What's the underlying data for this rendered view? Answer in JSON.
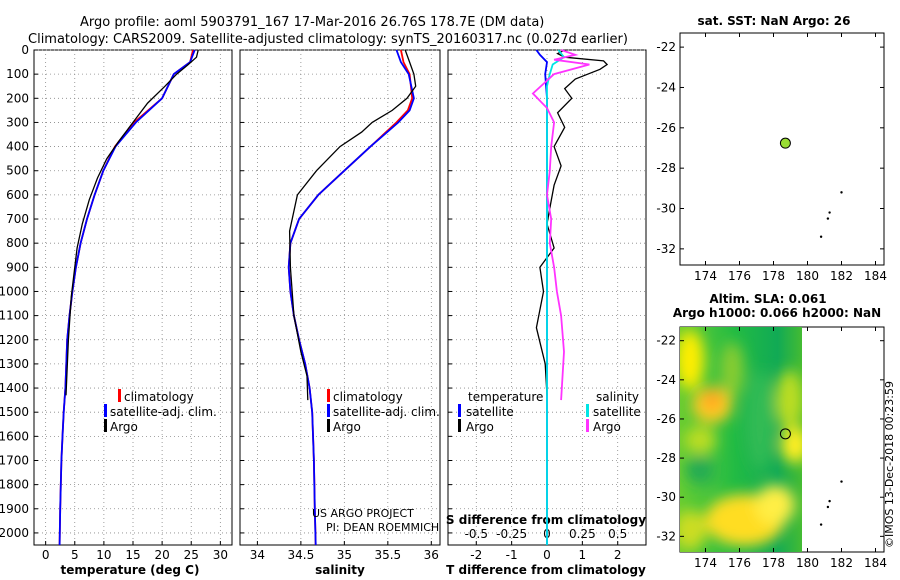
{
  "header": {
    "line1": "Argo profile: aoml 5903791_167 17-Mar-2016 26.76S 178.7E (DM data)",
    "line2": "Climatology: CARS2009. Satellite-adjusted climatology: synTS_20160317.nc (0.027d earlier)"
  },
  "credit": {
    "project": "US ARGO PROJECT",
    "pi": "PI: DEAN ROEMMICH"
  },
  "watermark": "©IMOS 13-Dec-2018 00:23:59",
  "colors": {
    "climatology": "#ff0000",
    "satellite": "#0000ff",
    "argo": "#000000",
    "sat_t_diff": "#0000ff",
    "sat_s_diff": "#00e5e5",
    "argo_s_diff": "#ff33ff",
    "map_dot": "#99dd33"
  },
  "chart_data": [
    {
      "type": "line",
      "name": "temperature",
      "xlabel": "temperature (deg C)",
      "xticks": [
        "0",
        "5",
        "10",
        "15",
        "20",
        "25",
        "30"
      ],
      "xlim": [
        -2,
        32
      ],
      "ylim": [
        2050,
        0
      ],
      "yticks": [
        "0",
        "100",
        "200",
        "300",
        "400",
        "500",
        "600",
        "700",
        "800",
        "900",
        "1000",
        "1100",
        "1200",
        "1300",
        "1400",
        "1500",
        "1600",
        "1700",
        "1800",
        "1900",
        "2000"
      ],
      "legend": [
        "climatology",
        "satellite-adj. clim.",
        "Argo"
      ],
      "series": [
        {
          "name": "climatology",
          "color": "#ff0000",
          "x": [
            25.3,
            24.8,
            22.0,
            20.0,
            15.2,
            11.9,
            9.9,
            8.4,
            7.1,
            6.0,
            5.2,
            4.6,
            4.1,
            3.7,
            3.4,
            3.1,
            2.9,
            2.7,
            2.6,
            2.5,
            2.4
          ],
          "y": [
            0,
            50,
            100,
            200,
            300,
            400,
            500,
            600,
            700,
            800,
            900,
            1000,
            1100,
            1200,
            1400,
            1500,
            1600,
            1700,
            1800,
            1900,
            2050
          ]
        },
        {
          "name": "satellite-adj. clim.",
          "color": "#0000ff",
          "x": [
            25.6,
            24.8,
            22.0,
            20.0,
            15.5,
            12.0,
            9.9,
            8.4,
            7.1,
            6.0,
            5.2,
            4.6,
            4.1,
            3.7,
            3.4,
            3.1,
            2.9,
            2.7,
            2.6,
            2.5,
            2.4
          ],
          "y": [
            0,
            50,
            100,
            200,
            300,
            400,
            500,
            600,
            700,
            800,
            900,
            1000,
            1100,
            1200,
            1400,
            1500,
            1600,
            1700,
            1800,
            1900,
            2050
          ]
        },
        {
          "name": "Argo",
          "color": "#000000",
          "x": [
            26.2,
            25.9,
            24.5,
            22.5,
            20.5,
            17.5,
            15.0,
            12.5,
            10.5,
            8.9,
            7.5,
            6.3,
            5.4,
            4.9,
            4.4,
            3.9,
            3.5
          ],
          "y": [
            0,
            30,
            60,
            100,
            150,
            220,
            300,
            380,
            450,
            530,
            620,
            720,
            820,
            920,
            1020,
            1200,
            1430
          ]
        }
      ]
    },
    {
      "type": "line",
      "name": "salinity",
      "xlabel": "salinity",
      "xticks": [
        "34",
        "34.5",
        "35",
        "35.5",
        "36"
      ],
      "xlim": [
        33.8,
        36.1
      ],
      "ylim": [
        2050,
        0
      ],
      "legend": [
        "climatology",
        "satellite-adj. clim.",
        "Argo"
      ],
      "series": [
        {
          "name": "climatology",
          "color": "#ff0000",
          "x": [
            35.65,
            35.68,
            35.75,
            35.78,
            35.73,
            35.6,
            35.3,
            35.0,
            34.7,
            34.48,
            34.38,
            34.36,
            34.38,
            34.42,
            34.48,
            34.55,
            34.6,
            34.63,
            34.65,
            34.66,
            34.67
          ],
          "y": [
            0,
            50,
            100,
            200,
            250,
            300,
            400,
            500,
            600,
            700,
            800,
            900,
            1000,
            1100,
            1200,
            1300,
            1400,
            1500,
            1700,
            1900,
            2050
          ]
        },
        {
          "name": "satellite-adj. clim.",
          "color": "#0000ff",
          "x": [
            35.6,
            35.65,
            35.74,
            35.8,
            35.75,
            35.62,
            35.3,
            35.0,
            34.7,
            34.48,
            34.38,
            34.36,
            34.38,
            34.42,
            34.48,
            34.55,
            34.6,
            34.63,
            34.65,
            34.66,
            34.67
          ],
          "y": [
            0,
            50,
            100,
            200,
            250,
            300,
            400,
            500,
            600,
            700,
            800,
            900,
            1000,
            1100,
            1200,
            1300,
            1400,
            1500,
            1700,
            1900,
            2050
          ]
        },
        {
          "name": "Argo",
          "color": "#000000",
          "x": [
            35.7,
            35.75,
            35.8,
            35.82,
            35.72,
            35.55,
            35.32,
            35.2,
            34.95,
            34.68,
            34.46,
            34.37,
            34.38,
            34.42,
            34.5,
            34.57,
            34.58
          ],
          "y": [
            0,
            50,
            100,
            150,
            200,
            250,
            300,
            340,
            400,
            500,
            600,
            750,
            900,
            1100,
            1250,
            1350,
            1450
          ]
        }
      ]
    },
    {
      "type": "line",
      "name": "difference from climatology",
      "xlabel": "T difference from climatology",
      "xticks": [
        "-2",
        "-1",
        "0",
        "1",
        "2"
      ],
      "xlim": [
        -2.8,
        2.8
      ],
      "s_axis_title": "S difference from climatology",
      "s_xticks": [
        "-0.5",
        "-0.25",
        "0",
        "0.25",
        "0.5"
      ],
      "s_xlim": [
        -0.7,
        0.7
      ],
      "ylim": [
        2050,
        0
      ],
      "legend_titles": [
        "temperature",
        "salinity"
      ],
      "legend": [
        "satellite",
        "Argo",
        "satellite",
        "Argo"
      ],
      "series": [
        {
          "name": "T satellite",
          "color": "#0000ff",
          "x": [
            -0.3,
            -0.2,
            0.0,
            -0.05,
            0.0,
            0.0,
            0.0,
            0.0,
            0.0
          ],
          "y": [
            0,
            20,
            50,
            100,
            200,
            500,
            1000,
            1500,
            2050
          ]
        },
        {
          "name": "T Argo",
          "color": "#000000",
          "x": [
            0.5,
            0.3,
            0.5,
            1.6,
            1.7,
            1.5,
            0.8,
            0.5,
            0.7,
            0.3,
            0.5,
            0.2,
            0.4,
            0.2,
            0.1,
            0.0,
            0.2,
            -0.2,
            -0.1,
            -0.3,
            -0.05,
            0.0
          ],
          "y": [
            0,
            15,
            30,
            45,
            60,
            80,
            120,
            160,
            200,
            260,
            320,
            400,
            480,
            560,
            640,
            720,
            820,
            900,
            1000,
            1150,
            1300,
            1430
          ]
        },
        {
          "name": "S satellite",
          "color": "#00e5e5",
          "x": [
            0.08,
            0.12,
            0.04,
            0.02,
            0.0,
            0.0,
            0.0,
            0.0,
            0.0,
            0.0
          ],
          "y": [
            0,
            30,
            60,
            100,
            150,
            300,
            800,
            1300,
            1800,
            2050
          ]
        },
        {
          "name": "S Argo",
          "color": "#ff33ff",
          "x": [
            0.1,
            0.2,
            0.05,
            0.3,
            0.05,
            -0.1,
            0.0,
            0.05,
            0.03,
            0.02,
            0.0,
            0.03,
            0.02,
            0.05,
            0.07,
            0.1,
            0.12,
            0.1
          ],
          "y": [
            0,
            20,
            40,
            60,
            100,
            180,
            240,
            300,
            400,
            500,
            600,
            700,
            800,
            900,
            1000,
            1100,
            1250,
            1450
          ]
        }
      ]
    },
    {
      "type": "scatter",
      "name": "position map",
      "title": "sat. SST: NaN Argo: 26",
      "xticks": [
        "174",
        "176",
        "178",
        "180",
        "182",
        "184"
      ],
      "yticks": [
        "-22",
        "-24",
        "-26",
        "-28",
        "-30",
        "-32"
      ],
      "xlim": [
        172.5,
        184.5
      ],
      "ylim": [
        -32.8,
        -21.3
      ],
      "profile": {
        "lon": 178.7,
        "lat": -26.76
      },
      "islands": [
        {
          "lon": 182.0,
          "lat": -29.2
        },
        {
          "lon": 181.3,
          "lat": -30.2
        },
        {
          "lon": 181.2,
          "lat": -30.5
        },
        {
          "lon": 180.8,
          "lat": -31.4
        }
      ]
    },
    {
      "type": "heatmap",
      "name": "altimetry map",
      "title": "Altim. SLA: 0.061",
      "subtitle": "Argo h1000: 0.066 h2000: NaN",
      "xticks": [
        "174",
        "176",
        "178",
        "180",
        "182",
        "184"
      ],
      "yticks": [
        "-22",
        "-24",
        "-26",
        "-28",
        "-30",
        "-32"
      ],
      "xlim": [
        172.5,
        184.5
      ],
      "ylim": [
        -32.8,
        -21.3
      ],
      "field_lon": [
        172.5,
        180.2
      ],
      "profile": {
        "lon": 178.7,
        "lat": -26.76
      },
      "islands": [
        {
          "lon": 182.0,
          "lat": -29.2
        },
        {
          "lon": 181.3,
          "lat": -30.2
        },
        {
          "lon": 181.2,
          "lat": -30.5
        },
        {
          "lon": 180.8,
          "lat": -31.4
        }
      ]
    }
  ]
}
